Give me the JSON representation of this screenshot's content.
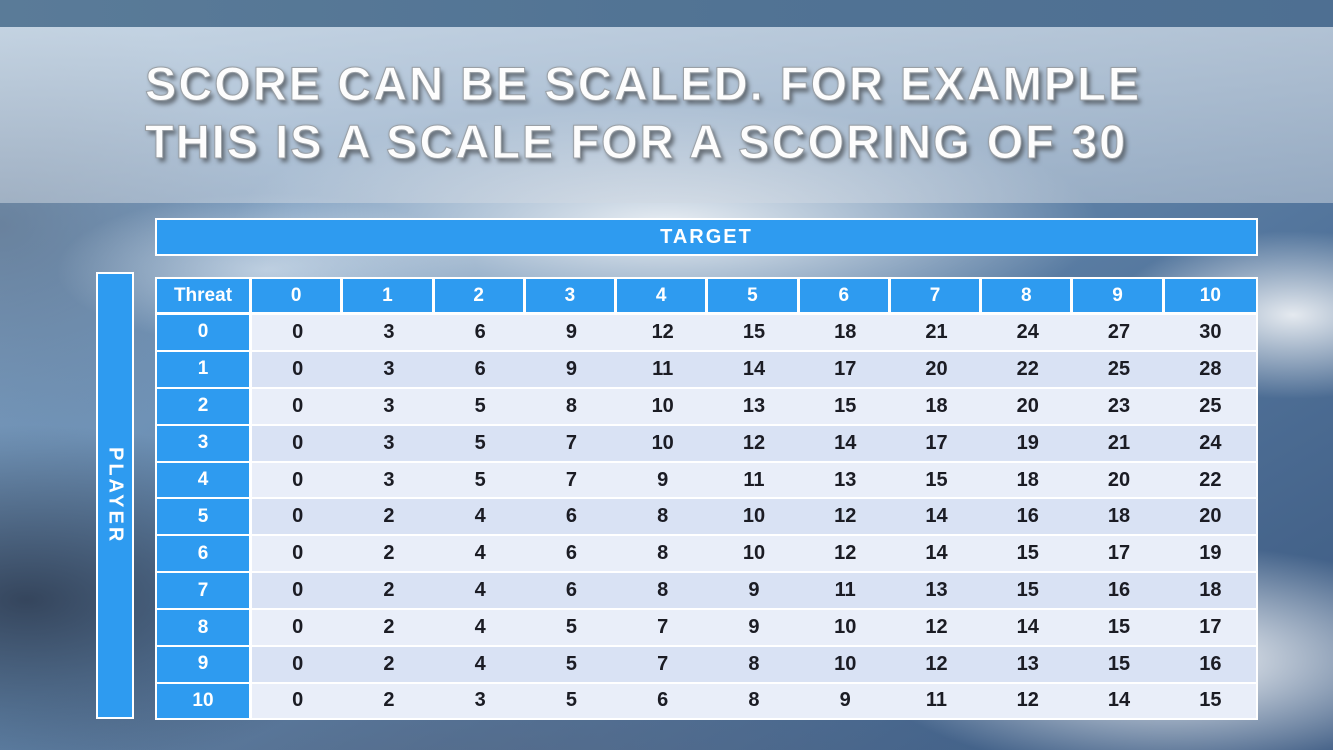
{
  "title": {
    "line1": "SCORE CAN BE SCALED. FOR EXAMPLE",
    "line2": "THIS IS A SCALE FOR A SCORING OF 30"
  },
  "table": {
    "target_label": "TARGET",
    "player_label": "PLAYER",
    "corner_label": "Threat",
    "column_headers": [
      "0",
      "1",
      "2",
      "3",
      "4",
      "5",
      "6",
      "7",
      "8",
      "9",
      "10"
    ],
    "row_headers": [
      "0",
      "1",
      "2",
      "3",
      "4",
      "5",
      "6",
      "7",
      "8",
      "9",
      "10"
    ],
    "rows": [
      [
        0,
        3,
        6,
        9,
        12,
        15,
        18,
        21,
        24,
        27,
        30
      ],
      [
        0,
        3,
        6,
        9,
        11,
        14,
        17,
        20,
        22,
        25,
        28
      ],
      [
        0,
        3,
        5,
        8,
        10,
        13,
        15,
        18,
        20,
        23,
        25
      ],
      [
        0,
        3,
        5,
        7,
        10,
        12,
        14,
        17,
        19,
        21,
        24
      ],
      [
        0,
        3,
        5,
        7,
        9,
        11,
        13,
        15,
        18,
        20,
        22
      ],
      [
        0,
        2,
        4,
        6,
        8,
        10,
        12,
        14,
        16,
        18,
        20
      ],
      [
        0,
        2,
        4,
        6,
        8,
        10,
        12,
        14,
        15,
        17,
        19
      ],
      [
        0,
        2,
        4,
        6,
        8,
        9,
        11,
        13,
        15,
        16,
        18
      ],
      [
        0,
        2,
        4,
        5,
        7,
        9,
        10,
        12,
        14,
        15,
        17
      ],
      [
        0,
        2,
        4,
        5,
        7,
        8,
        10,
        12,
        13,
        15,
        16
      ],
      [
        0,
        2,
        3,
        5,
        6,
        8,
        9,
        11,
        12,
        14,
        15
      ]
    ]
  },
  "colors": {
    "header_blue": "#2E9BF0",
    "row_even": "#E9EEF9",
    "row_odd": "#D9E2F4",
    "cell_text": "#1B1C24"
  }
}
